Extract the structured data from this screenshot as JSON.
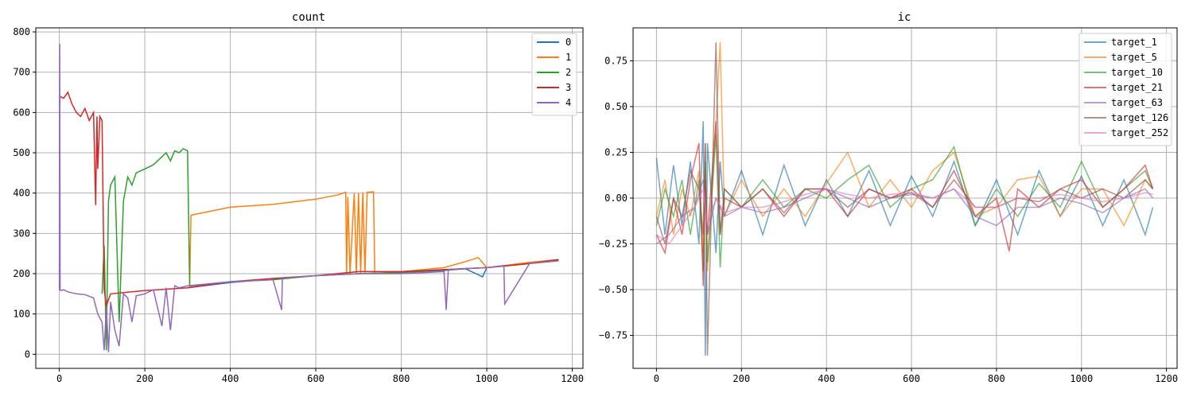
{
  "chart_data": [
    {
      "type": "line",
      "title": "count",
      "xlabel": "",
      "ylabel": "",
      "xlim": [
        -55,
        1225
      ],
      "ylim": [
        -35,
        810
      ],
      "xticks": [
        0,
        200,
        400,
        600,
        800,
        1000,
        1200
      ],
      "yticks": [
        0,
        100,
        200,
        300,
        400,
        500,
        600,
        700,
        800
      ],
      "grid": true,
      "legend": "top-right",
      "series": [
        {
          "name": "0",
          "color": "#1f77b4",
          "x": [
            300,
            400,
            500,
            600,
            700,
            800,
            900,
            950,
            975,
            990,
            1000,
            1050,
            1100,
            1168
          ],
          "y": [
            165,
            178,
            187,
            195,
            200,
            203,
            208,
            212,
            200,
            192,
            215,
            220,
            225,
            232
          ]
        },
        {
          "name": "1",
          "color": "#ff7f0e",
          "x": [
            300,
            305,
            308,
            400,
            500,
            600,
            650,
            670,
            672,
            675,
            680,
            690,
            695,
            700,
            705,
            710,
            715,
            720,
            735,
            738,
            800,
            900,
            950,
            980,
            1000,
            1100,
            1168
          ],
          "y": [
            165,
            165,
            345,
            365,
            372,
            385,
            395,
            402,
            200,
            390,
            200,
            400,
            200,
            400,
            200,
            402,
            200,
            402,
            403,
            200,
            205,
            215,
            230,
            240,
            215,
            228,
            235
          ]
        },
        {
          "name": "2",
          "color": "#2ca02c",
          "x": [
            100,
            105,
            110,
            115,
            120,
            130,
            140,
            150,
            160,
            170,
            180,
            200,
            220,
            240,
            250,
            260,
            270,
            280,
            290,
            300,
            305,
            310,
            400,
            500,
            600,
            700,
            800,
            900,
            1000,
            1100,
            1168
          ],
          "y": [
            150,
            270,
            10,
            380,
            420,
            440,
            80,
            380,
            440,
            420,
            450,
            460,
            470,
            490,
            500,
            480,
            505,
            500,
            510,
            505,
            170,
            170,
            180,
            185,
            195,
            200,
            203,
            210,
            215,
            225,
            235
          ]
        },
        {
          "name": "3",
          "color": "#d62728",
          "x": [
            0,
            2,
            10,
            20,
            30,
            40,
            50,
            60,
            70,
            80,
            85,
            88,
            90,
            95,
            100,
            105,
            110,
            120,
            200,
            300,
            400,
            500,
            600,
            700,
            800,
            900,
            1000,
            1100,
            1168
          ],
          "y": [
            620,
            640,
            635,
            650,
            620,
            600,
            590,
            610,
            580,
            600,
            370,
            590,
            460,
            590,
            580,
            160,
            120,
            150,
            158,
            165,
            180,
            188,
            195,
            205,
            205,
            210,
            215,
            225,
            235
          ]
        },
        {
          "name": "4",
          "color": "#9467bd",
          "x": [
            0,
            1,
            2,
            3,
            10,
            20,
            40,
            60,
            80,
            90,
            100,
            105,
            110,
            115,
            120,
            130,
            140,
            150,
            160,
            170,
            180,
            200,
            220,
            240,
            250,
            260,
            270,
            280,
            300,
            400,
            500,
            520,
            522,
            600,
            700,
            800,
            900,
            905,
            910,
            1000,
            1040,
            1042,
            1100,
            1168
          ],
          "y": [
            160,
            770,
            160,
            158,
            160,
            155,
            150,
            148,
            140,
            100,
            80,
            10,
            120,
            5,
            130,
            60,
            20,
            150,
            140,
            80,
            145,
            150,
            160,
            70,
            165,
            60,
            170,
            165,
            170,
            180,
            185,
            110,
            190,
            195,
            200,
            200,
            205,
            110,
            210,
            215,
            220,
            125,
            225,
            232
          ]
        }
      ]
    },
    {
      "type": "line",
      "title": "ic",
      "xlabel": "",
      "ylabel": "",
      "xlim": [
        -55,
        1225
      ],
      "ylim": [
        -0.93,
        0.93
      ],
      "xticks": [
        0,
        200,
        400,
        600,
        800,
        1000,
        1200
      ],
      "yticks": [
        -0.75,
        -0.5,
        -0.25,
        0.0,
        0.25,
        0.5,
        0.75
      ],
      "ytick_labels": [
        "−0.75",
        "−0.50",
        "−0.25",
        "0.00",
        "0.25",
        "0.50",
        "0.75"
      ],
      "grid": true,
      "legend": "top-right",
      "series": [
        {
          "name": "target_1",
          "color": "#1f77b4",
          "x": [
            0,
            20,
            40,
            60,
            80,
            100,
            110,
            115,
            120,
            140,
            150,
            160,
            200,
            250,
            300,
            350,
            400,
            450,
            500,
            550,
            600,
            650,
            700,
            750,
            800,
            850,
            900,
            950,
            1000,
            1050,
            1100,
            1150,
            1168
          ],
          "y": [
            0.22,
            -0.2,
            0.18,
            -0.15,
            0.2,
            -0.25,
            0.42,
            -0.86,
            0.3,
            -0.3,
            0.2,
            -0.1,
            0.15,
            -0.2,
            0.18,
            -0.15,
            0.1,
            -0.1,
            0.15,
            -0.15,
            0.12,
            -0.1,
            0.2,
            -0.15,
            0.1,
            -0.2,
            0.15,
            -0.1,
            0.12,
            -0.15,
            0.1,
            -0.2,
            -0.05
          ]
        },
        {
          "name": "target_5",
          "color": "#ff7f0e",
          "x": [
            0,
            20,
            40,
            60,
            80,
            100,
            110,
            115,
            120,
            140,
            150,
            160,
            200,
            250,
            300,
            350,
            400,
            450,
            500,
            550,
            600,
            650,
            700,
            750,
            800,
            850,
            900,
            950,
            1000,
            1050,
            1100,
            1150,
            1168
          ],
          "y": [
            -0.1,
            0.1,
            -0.2,
            0.05,
            -0.1,
            0.15,
            -0.3,
            0.3,
            -0.4,
            0.4,
            0.85,
            -0.1,
            0.1,
            -0.1,
            0.05,
            -0.1,
            0.08,
            0.25,
            -0.05,
            0.1,
            -0.05,
            0.15,
            0.25,
            -0.1,
            -0.05,
            0.1,
            0.12,
            -0.1,
            0.05,
            0.05,
            -0.15,
            0.1,
            0.05
          ]
        },
        {
          "name": "target_10",
          "color": "#2ca02c",
          "x": [
            0,
            20,
            40,
            60,
            80,
            100,
            110,
            115,
            120,
            140,
            150,
            160,
            200,
            250,
            300,
            350,
            400,
            450,
            500,
            550,
            600,
            650,
            700,
            750,
            800,
            850,
            900,
            950,
            1000,
            1050,
            1100,
            1150,
            1168
          ],
          "y": [
            -0.15,
            0.05,
            -0.1,
            0.1,
            -0.2,
            0.1,
            -0.4,
            0.2,
            -0.35,
            0.35,
            -0.38,
            0.05,
            -0.05,
            0.1,
            -0.05,
            0.05,
            0.0,
            0.1,
            0.18,
            -0.05,
            0.05,
            0.1,
            0.28,
            -0.15,
            0.05,
            -0.1,
            0.08,
            -0.05,
            0.2,
            -0.05,
            0.05,
            0.15,
            0.05
          ]
        },
        {
          "name": "target_21",
          "color": "#d62728",
          "x": [
            0,
            20,
            40,
            60,
            80,
            100,
            110,
            115,
            120,
            140,
            150,
            160,
            200,
            250,
            300,
            350,
            400,
            450,
            500,
            550,
            600,
            650,
            700,
            750,
            800,
            830,
            850,
            900,
            950,
            1000,
            1050,
            1100,
            1150,
            1168
          ],
          "y": [
            -0.2,
            -0.3,
            0.0,
            -0.2,
            0.1,
            0.3,
            -0.48,
            0.1,
            -0.2,
            0.42,
            -0.2,
            0.0,
            -0.05,
            0.05,
            -0.1,
            0.05,
            0.05,
            -0.1,
            0.05,
            0.0,
            0.05,
            -0.05,
            0.15,
            -0.1,
            0.0,
            -0.29,
            0.05,
            -0.05,
            0.05,
            0.1,
            -0.05,
            0.05,
            0.18,
            0.05
          ]
        },
        {
          "name": "target_63",
          "color": "#9467bd",
          "x": [
            0,
            30,
            60,
            90,
            110,
            120,
            140,
            160,
            200,
            250,
            300,
            350,
            400,
            450,
            500,
            550,
            600,
            650,
            700,
            750,
            800,
            850,
            900,
            950,
            1000,
            1050,
            1100,
            1150,
            1168
          ],
          "y": [
            -0.25,
            -0.2,
            -0.1,
            -0.05,
            0.1,
            -0.2,
            0.0,
            -0.1,
            -0.05,
            -0.08,
            -0.05,
            0.0,
            0.05,
            0.0,
            -0.05,
            0.0,
            0.02,
            0.0,
            0.05,
            -0.1,
            -0.15,
            -0.05,
            -0.05,
            0.0,
            -0.03,
            -0.08,
            0.0,
            0.05,
            0.0
          ]
        },
        {
          "name": "target_126",
          "color": "#8c564b",
          "x": [
            0,
            20,
            40,
            60,
            80,
            100,
            110,
            115,
            120,
            140,
            150,
            160,
            200,
            250,
            300,
            350,
            400,
            450,
            500,
            550,
            600,
            650,
            700,
            750,
            800,
            850,
            900,
            950,
            1000,
            1050,
            1100,
            1150,
            1168
          ],
          "y": [
            -0.1,
            -0.25,
            0.0,
            -0.1,
            0.15,
            0.05,
            -0.2,
            0.3,
            -0.86,
            0.85,
            -0.2,
            0.05,
            -0.05,
            0.05,
            -0.08,
            0.05,
            0.05,
            -0.05,
            0.05,
            0.0,
            0.03,
            -0.05,
            0.1,
            -0.05,
            -0.05,
            0.0,
            -0.02,
            0.05,
            0.0,
            0.05,
            0.0,
            0.1,
            0.05
          ]
        },
        {
          "name": "target_252",
          "color": "#e377c2",
          "x": [
            0,
            30,
            60,
            90,
            110,
            120,
            140,
            160,
            200,
            250,
            300,
            350,
            400,
            450,
            500,
            550,
            600,
            650,
            700,
            750,
            800,
            850,
            900,
            950,
            1000,
            1050,
            1100,
            1150,
            1168
          ],
          "y": [
            -0.2,
            -0.25,
            -0.15,
            -0.05,
            0.05,
            -0.15,
            0.0,
            -0.08,
            -0.05,
            -0.05,
            -0.02,
            0.02,
            0.05,
            0.02,
            0.0,
            0.02,
            0.03,
            0.0,
            0.05,
            -0.05,
            -0.05,
            0.0,
            0.0,
            0.02,
            0.0,
            -0.02,
            0.0,
            0.03,
            0.02
          ]
        }
      ]
    }
  ]
}
